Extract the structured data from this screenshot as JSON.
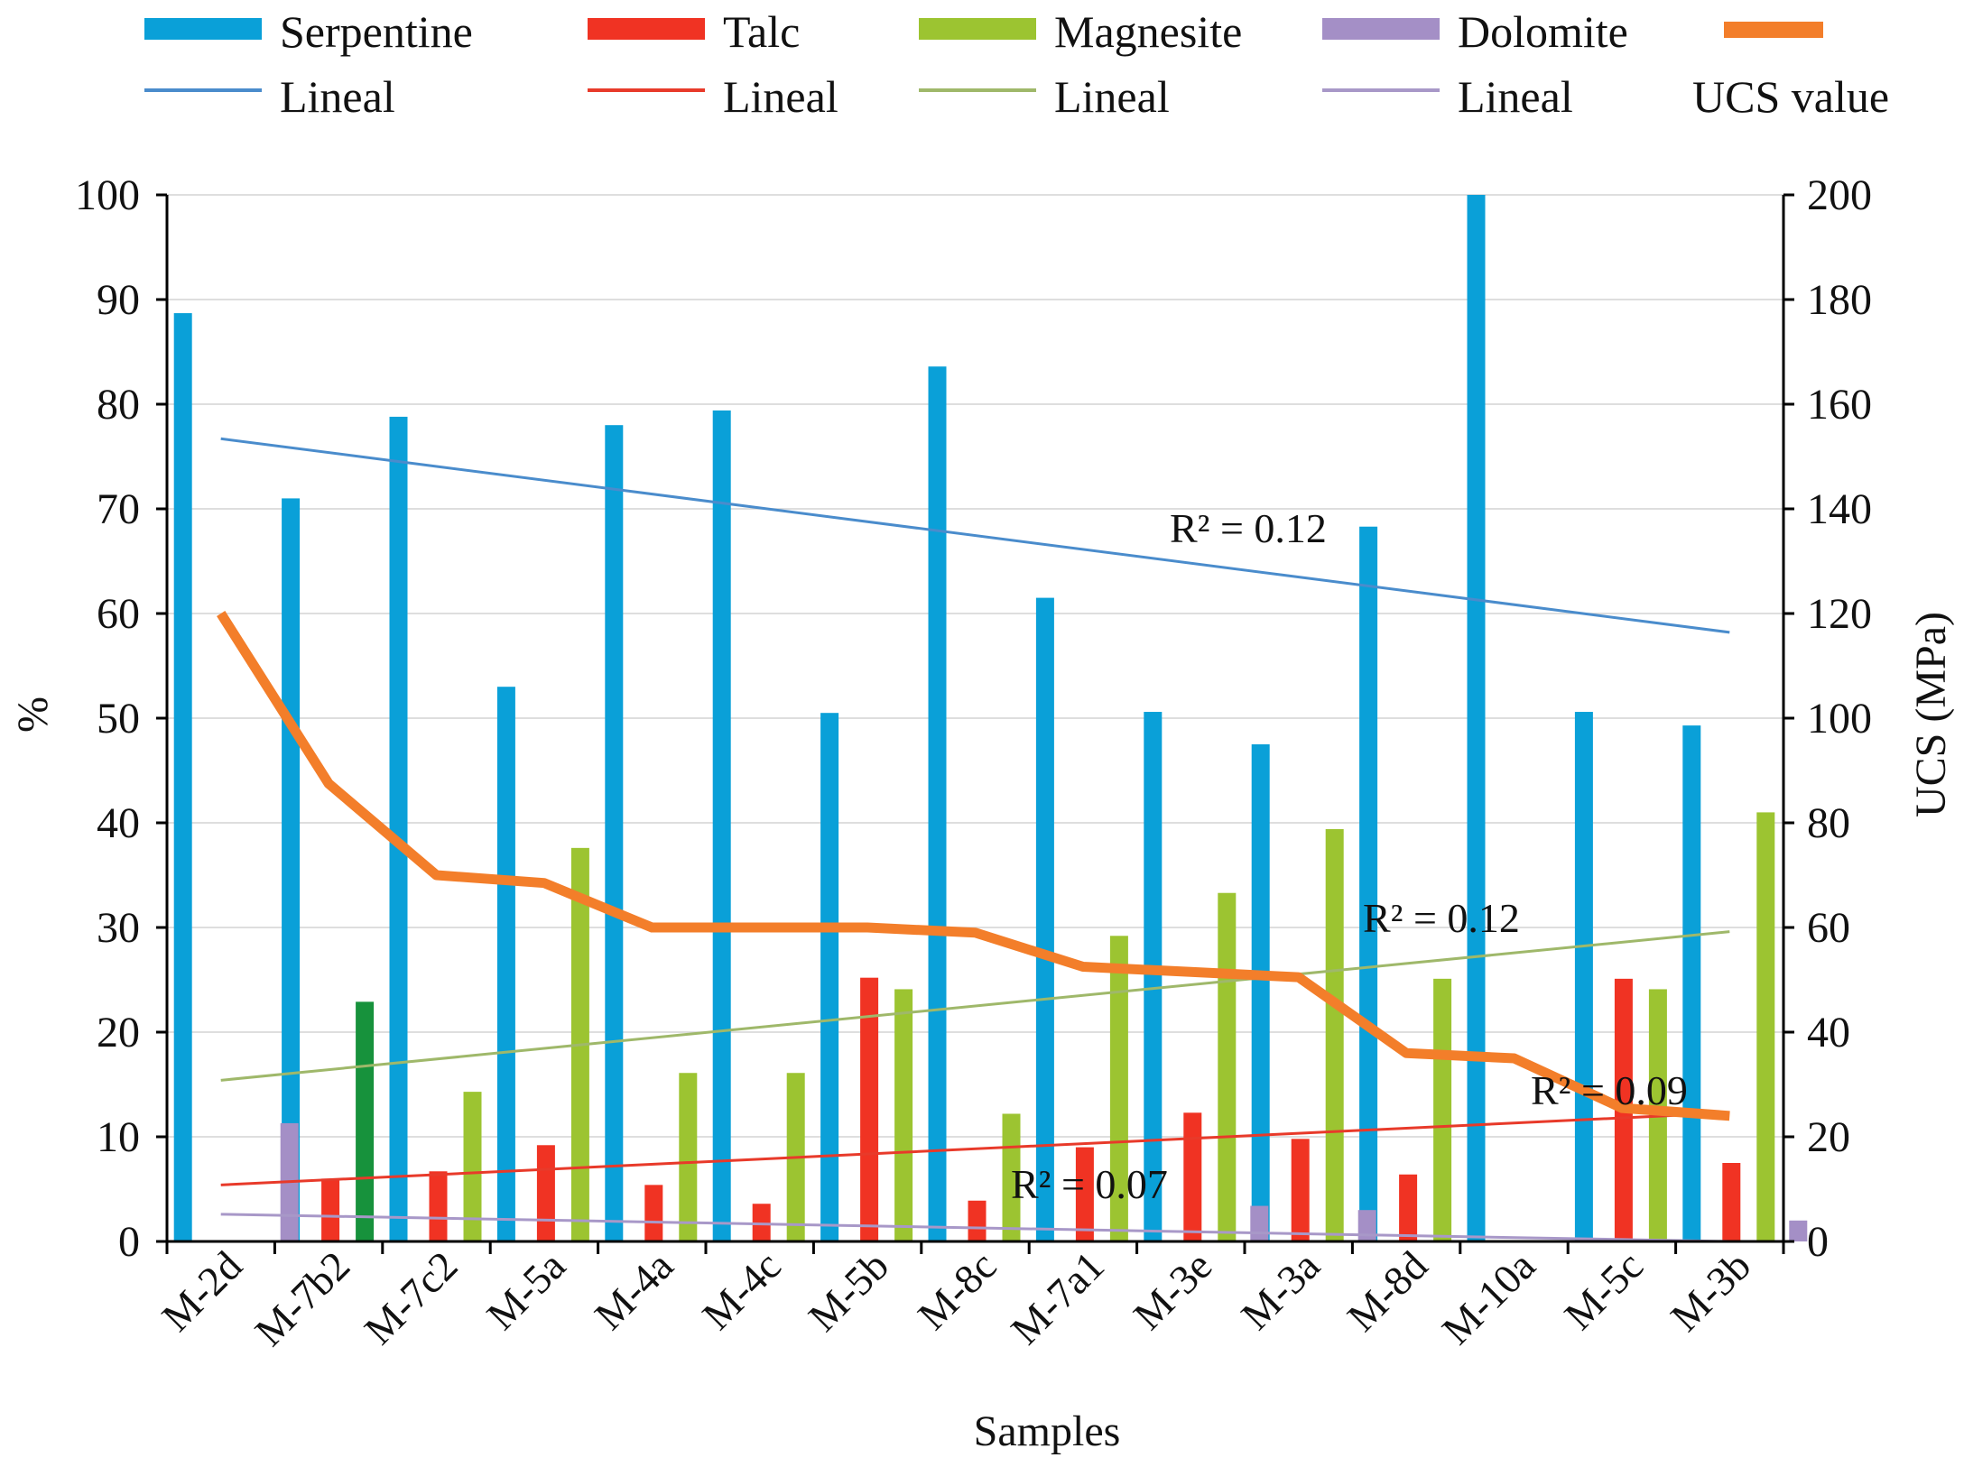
{
  "chart_data": {
    "type": "bar",
    "title": "",
    "xlabel": "Samples",
    "ylabel": "%",
    "y2label": "UCS (MPa)",
    "ylim": [
      0,
      100
    ],
    "y2lim": [
      0,
      200
    ],
    "yticks": [
      0,
      10,
      20,
      30,
      40,
      50,
      60,
      70,
      80,
      90,
      100
    ],
    "y2ticks": [
      0,
      20,
      40,
      60,
      80,
      100,
      120,
      140,
      160,
      180,
      200
    ],
    "categories": [
      "M-2d",
      "M-7b2",
      "M-7c2",
      "M-5a",
      "M-4a",
      "M-4c",
      "M-5b",
      "M-8c",
      "M-7a1",
      "M-3e",
      "M-3a",
      "M-8d",
      "M-10a",
      "M-5c",
      "M-3b"
    ],
    "series": [
      {
        "name": "Serpentine",
        "color": "#0aa0d8",
        "values": [
          88.7,
          71.0,
          78.8,
          53.0,
          78.0,
          79.4,
          50.5,
          83.6,
          61.5,
          50.6,
          47.5,
          68.3,
          100,
          50.6,
          49.3
        ]
      },
      {
        "name": "Talc",
        "color": "#f03323",
        "values": [
          null,
          6.0,
          6.7,
          9.2,
          5.4,
          3.6,
          25.2,
          3.9,
          9.0,
          12.3,
          9.8,
          6.4,
          null,
          25.1,
          7.5
        ]
      },
      {
        "name": "Magnesite",
        "color": "#9cc431",
        "values": [
          null,
          22.9,
          14.3,
          37.6,
          16.1,
          16.1,
          24.1,
          12.2,
          29.2,
          33.3,
          39.4,
          25.1,
          null,
          24.1,
          41.0
        ]
      },
      {
        "name": "Dolomite",
        "color": "#a48fc6",
        "values": [
          11.3,
          null,
          null,
          null,
          null,
          null,
          null,
          null,
          null,
          3.4,
          3.0,
          null,
          null,
          null,
          2.0
        ]
      }
    ],
    "ucs": {
      "name": "UCS value",
      "color": "#f37e2a",
      "axis": "right",
      "values": [
        120,
        87.5,
        70,
        68.5,
        60,
        60,
        60,
        59,
        52.5,
        51.5,
        50.5,
        36,
        35,
        25.5,
        24
      ]
    },
    "trendlines": [
      {
        "name": "Lineal",
        "series": "Serpentine",
        "color": "#4a8ccc",
        "start": 76.7,
        "end": 58.2,
        "r2_label": "R² = 0.12"
      },
      {
        "name": "Lineal",
        "series": "Talc",
        "color": "#e83a2a",
        "start": 5.4,
        "end": 12.3,
        "r2_label": "R² = 0.09"
      },
      {
        "name": "Lineal",
        "series": "Magnesite",
        "color": "#9fb86a",
        "start": 15.4,
        "end": 29.6,
        "r2_label": "R² = 0.12"
      },
      {
        "name": "Lineal",
        "series": "Dolomite",
        "color": "#a898c8",
        "start": 2.6,
        "end": 0.0,
        "r2_label": "R² = 0.07"
      }
    ],
    "legend": {
      "position": "top",
      "row1": [
        "Serpentine",
        "Talc",
        "Magnesite",
        "Dolomite",
        ""
      ],
      "row2": [
        "Lineal",
        "Lineal",
        "Lineal",
        "Lineal",
        "UCS value"
      ]
    }
  }
}
